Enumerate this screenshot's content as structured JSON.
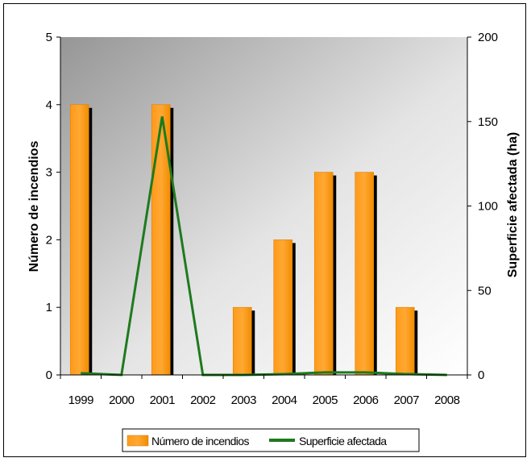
{
  "chart_data": {
    "type": "bar+line",
    "categories": [
      "1999",
      "2000",
      "2001",
      "2002",
      "2003",
      "2004",
      "2005",
      "2006",
      "2007",
      "2008"
    ],
    "series": [
      {
        "name": "Número de incendios",
        "type": "bar",
        "axis": "left",
        "color": "#ff9900",
        "values": [
          4,
          0,
          4,
          0,
          1,
          2,
          3,
          3,
          1,
          0
        ]
      },
      {
        "name": "Superficie afectada",
        "type": "line",
        "axis": "right",
        "color": "#1e7a1e",
        "values": [
          1,
          0,
          153,
          0,
          0,
          0.5,
          1.5,
          1.5,
          0.5,
          0
        ]
      }
    ],
    "ylabel": "Número de incendios",
    "y2label": "Superficie afectada (ha)",
    "ylim": [
      0,
      5
    ],
    "y2lim": [
      0,
      200
    ],
    "yticks": [
      "0",
      "1",
      "2",
      "3",
      "4",
      "5"
    ],
    "y2ticks": [
      "0",
      "50",
      "100",
      "150",
      "200"
    ],
    "legend_position": "bottom",
    "grid": false
  }
}
